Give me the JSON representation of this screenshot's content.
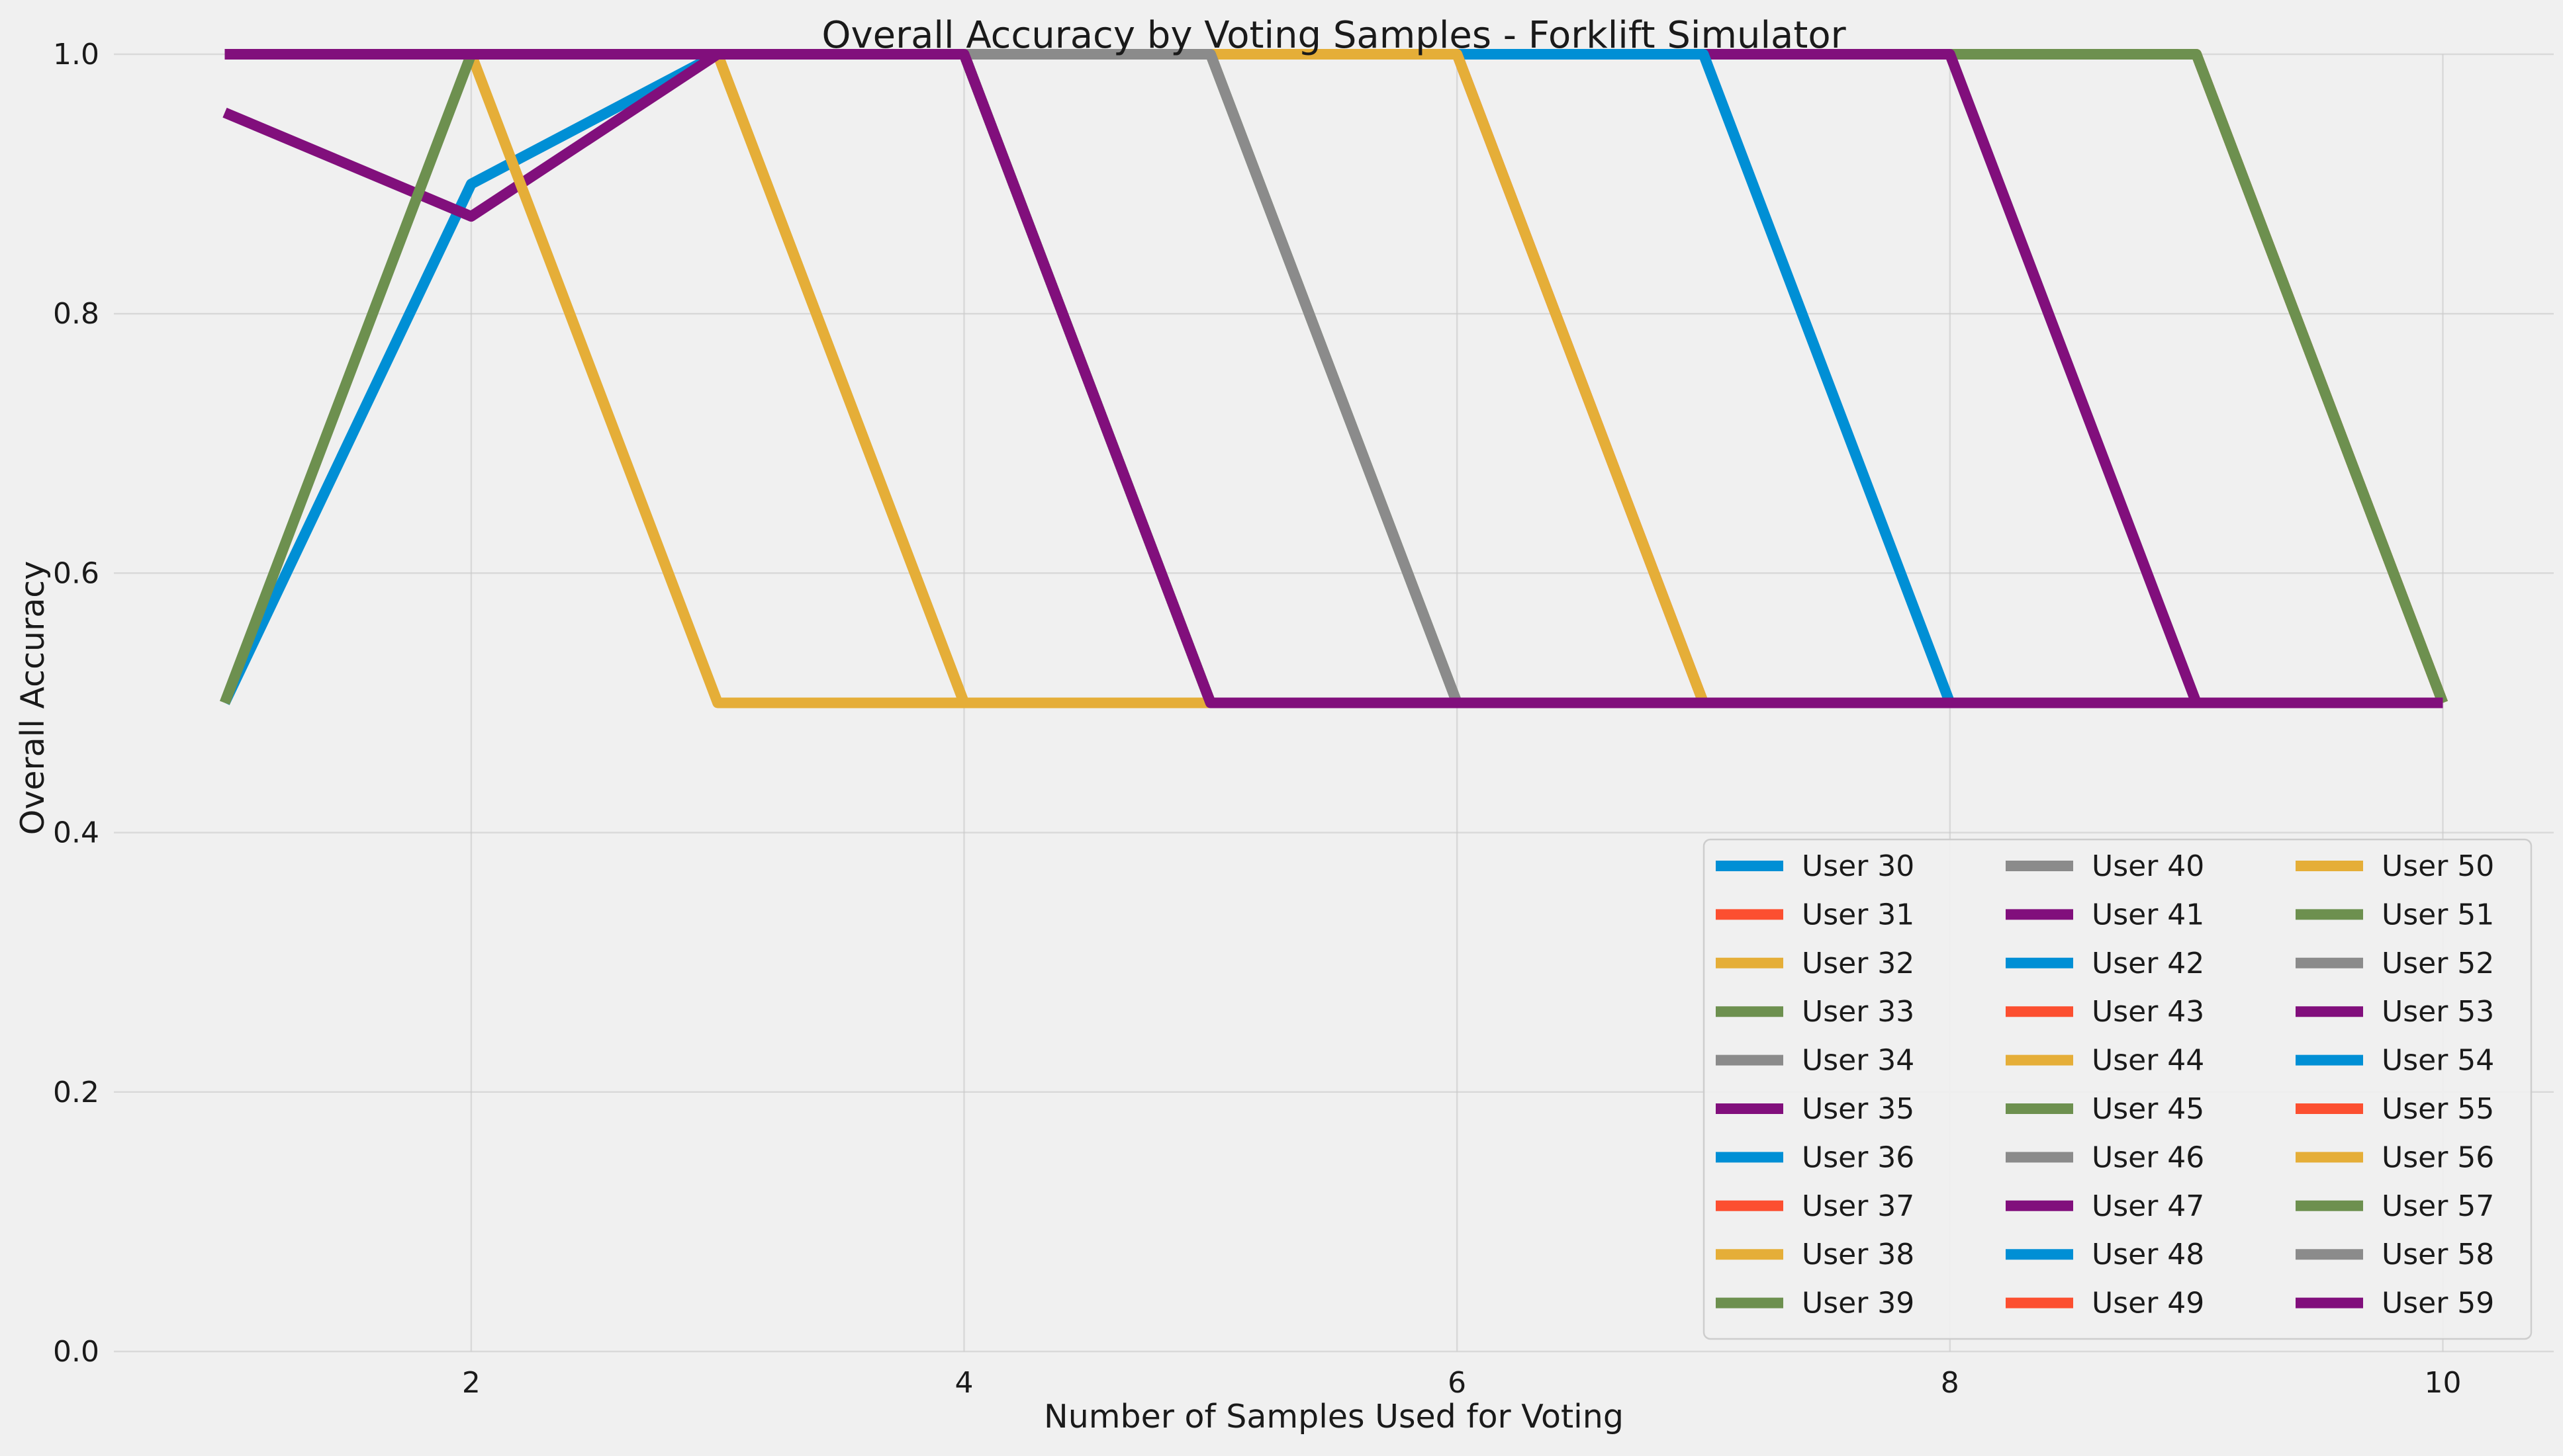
{
  "chart_data": {
    "type": "line",
    "title": "Overall Accuracy by Voting Samples - Forklift Simulator",
    "xlabel": "Number of Samples Used for Voting",
    "ylabel": "Overall Accuracy",
    "xlim": [
      0.55,
      10.45
    ],
    "ylim": [
      0,
      1
    ],
    "xticks": [
      2,
      4,
      6,
      8,
      10
    ],
    "yticks": [
      0.0,
      0.2,
      0.4,
      0.6,
      0.8,
      1.0
    ],
    "xtick_labels": [
      "2",
      "4",
      "6",
      "8",
      "10"
    ],
    "ytick_labels": [
      "0.0",
      "0.2",
      "0.4",
      "0.6",
      "0.8",
      "1.0"
    ],
    "grid": true,
    "legend_position": "lower-right",
    "legend_columns": 3,
    "palette": [
      "#008fd5",
      "#fc4f30",
      "#e5ae38",
      "#6d904f",
      "#8b8b8b",
      "#810f7c"
    ],
    "x": [
      1,
      2,
      3,
      4,
      5,
      6,
      7,
      8,
      9,
      10
    ],
    "series": [
      {
        "name": "User 30",
        "values": [
          1.0,
          1.0,
          1.0,
          1.0,
          1.0,
          1.0,
          1.0,
          1.0,
          1.0,
          0.5
        ]
      },
      {
        "name": "User 31",
        "values": [
          1.0,
          1.0,
          1.0,
          1.0,
          1.0,
          1.0,
          1.0,
          1.0,
          1.0,
          0.5
        ]
      },
      {
        "name": "User 32",
        "values": [
          1.0,
          1.0,
          1.0,
          1.0,
          1.0,
          1.0,
          1.0,
          1.0,
          1.0,
          0.5
        ]
      },
      {
        "name": "User 33",
        "values": [
          1.0,
          1.0,
          1.0,
          1.0,
          1.0,
          1.0,
          1.0,
          1.0,
          1.0,
          0.5
        ]
      },
      {
        "name": "User 34",
        "values": [
          1.0,
          1.0,
          1.0,
          1.0,
          1.0,
          1.0,
          1.0,
          1.0,
          0.5,
          0.5
        ]
      },
      {
        "name": "User 35",
        "values": [
          1.0,
          1.0,
          1.0,
          1.0,
          1.0,
          1.0,
          1.0,
          1.0,
          0.5,
          0.5
        ]
      },
      {
        "name": "User 36",
        "values": [
          1.0,
          1.0,
          1.0,
          1.0,
          1.0,
          1.0,
          1.0,
          0.5,
          0.5,
          0.5
        ]
      },
      {
        "name": "User 37",
        "values": [
          1.0,
          1.0,
          1.0,
          1.0,
          1.0,
          1.0,
          0.5,
          0.5,
          0.5,
          0.5
        ]
      },
      {
        "name": "User 38",
        "values": [
          1.0,
          1.0,
          1.0,
          1.0,
          1.0,
          1.0,
          0.5,
          0.5,
          0.5,
          0.5
        ]
      },
      {
        "name": "User 39",
        "values": [
          1.0,
          1.0,
          1.0,
          1.0,
          1.0,
          0.5,
          0.5,
          0.5,
          0.5,
          0.5
        ]
      },
      {
        "name": "User 40",
        "values": [
          1.0,
          1.0,
          1.0,
          1.0,
          1.0,
          0.5,
          0.5,
          0.5,
          0.5,
          0.5
        ]
      },
      {
        "name": "User 41",
        "values": [
          1.0,
          1.0,
          1.0,
          1.0,
          0.5,
          0.5,
          0.5,
          0.5,
          0.5,
          0.5
        ]
      },
      {
        "name": "User 42",
        "values": [
          1.0,
          1.0,
          1.0,
          1.0,
          0.5,
          0.5,
          0.5,
          0.5,
          0.5,
          0.5
        ]
      },
      {
        "name": "User 43",
        "values": [
          1.0,
          1.0,
          1.0,
          1.0,
          0.5,
          0.5,
          0.5,
          0.5,
          0.5,
          0.5
        ]
      },
      {
        "name": "User 44",
        "values": [
          1.0,
          1.0,
          1.0,
          0.5,
          0.5,
          0.5,
          0.5,
          0.5,
          0.5,
          0.5
        ]
      },
      {
        "name": "User 45",
        "values": [
          1.0,
          1.0,
          1.0,
          1.0,
          0.5,
          0.5,
          0.5,
          0.5,
          0.5,
          0.5
        ]
      },
      {
        "name": "User 46",
        "values": [
          1.0,
          1.0,
          1.0,
          1.0,
          0.5,
          0.5,
          0.5,
          0.5,
          0.5,
          0.5
        ]
      },
      {
        "name": "User 47",
        "values": [
          1.0,
          1.0,
          1.0,
          1.0,
          0.5,
          0.5,
          0.5,
          0.5,
          0.5,
          0.5
        ]
      },
      {
        "name": "User 48",
        "values": [
          0.5,
          0.9,
          1.0,
          1.0,
          0.5,
          0.5,
          0.5,
          0.5,
          0.5,
          0.5
        ]
      },
      {
        "name": "User 49",
        "values": [
          1.0,
          1.0,
          1.0,
          1.0,
          0.5,
          0.5,
          0.5,
          0.5,
          0.5,
          0.5
        ]
      },
      {
        "name": "User 50",
        "values": [
          1.0,
          1.0,
          1.0,
          0.5,
          0.5,
          0.5,
          0.5,
          0.5,
          0.5,
          0.5
        ]
      },
      {
        "name": "User 51",
        "values": [
          1.0,
          1.0,
          1.0,
          1.0,
          0.5,
          0.5,
          0.5,
          0.5,
          0.5,
          0.5
        ]
      },
      {
        "name": "User 52",
        "values": [
          1.0,
          1.0,
          1.0,
          1.0,
          0.5,
          0.5,
          0.5,
          0.5,
          0.5,
          0.5
        ]
      },
      {
        "name": "User 53",
        "values": [
          0.955,
          0.875,
          1.0,
          1.0,
          0.5,
          0.5,
          0.5,
          0.5,
          0.5,
          0.5
        ]
      },
      {
        "name": "User 54",
        "values": [
          1.0,
          1.0,
          1.0,
          1.0,
          0.5,
          0.5,
          0.5,
          0.5,
          0.5,
          0.5
        ]
      },
      {
        "name": "User 55",
        "values": [
          1.0,
          1.0,
          1.0,
          1.0,
          0.5,
          0.5,
          0.5,
          0.5,
          0.5,
          0.5
        ]
      },
      {
        "name": "User 56",
        "values": [
          1.0,
          1.0,
          0.5,
          0.5,
          0.5,
          0.5,
          0.5,
          0.5,
          0.5,
          0.5
        ]
      },
      {
        "name": "User 57",
        "values": [
          0.5,
          1.0,
          1.0,
          1.0,
          0.5,
          0.5,
          0.5,
          0.5,
          0.5,
          0.5
        ]
      },
      {
        "name": "User 58",
        "values": [
          1.0,
          1.0,
          1.0,
          1.0,
          0.5,
          0.5,
          0.5,
          0.5,
          0.5,
          0.5
        ]
      },
      {
        "name": "User 59",
        "values": [
          1.0,
          1.0,
          1.0,
          1.0,
          0.5,
          0.5,
          0.5,
          0.5,
          0.5,
          0.5
        ]
      }
    ]
  }
}
